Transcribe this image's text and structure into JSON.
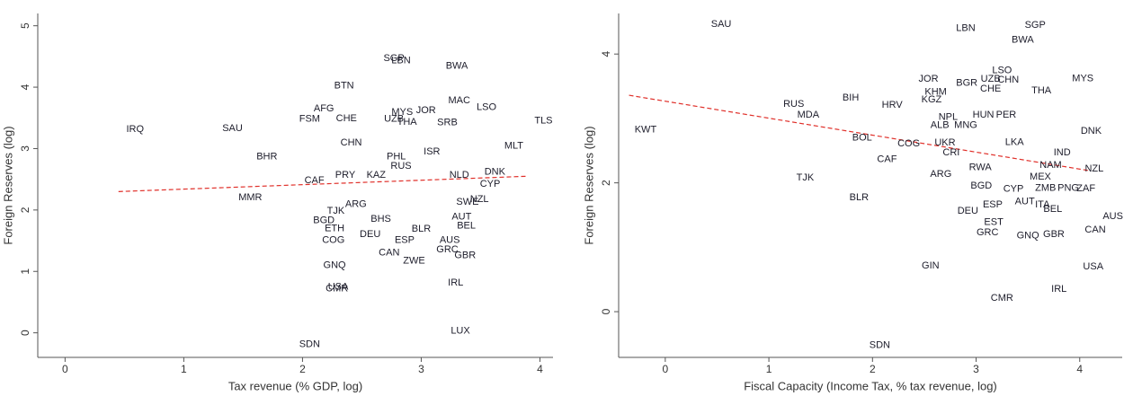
{
  "chart_data": [
    {
      "type": "scatter",
      "xlabel": "Tax revenue (% GDP, log)",
      "ylabel": "Foreign Reserves (log)",
      "xlim": [
        -0.23,
        4.11
      ],
      "ylim": [
        -0.4,
        5.2
      ],
      "xticks": [
        0,
        1,
        2,
        3,
        4
      ],
      "yticks": [
        0,
        1,
        2,
        3,
        4,
        5
      ],
      "color": "#1c1c2a",
      "labels": [
        "IRQ",
        "SAU",
        "BHR",
        "MMR",
        "AFG",
        "FSM",
        "CHE",
        "BTN",
        "SGP",
        "LBN",
        "BWA",
        "MAC",
        "LSO",
        "TLS",
        "MLT",
        "MYS",
        "JOR",
        "UZB",
        "THA",
        "SRB",
        "CHN",
        "CAF",
        "PRY",
        "DNK",
        "CYP",
        "NZL",
        "SWE",
        "AUT",
        "BEL",
        "AUS",
        "GRC",
        "GBR",
        "ZWE",
        "CAN",
        "ESP",
        "DEU",
        "BLR",
        "BHS",
        "COG",
        "ETH",
        "BGD",
        "TJK",
        "GNQ",
        "CMR",
        "USA",
        "IRL",
        "LUX",
        "SDN",
        "ARG",
        "KAZ",
        "PHL",
        "ISR",
        "NLD",
        "RUS"
      ],
      "x": [
        0.59,
        1.41,
        1.7,
        1.56,
        2.18,
        2.06,
        2.37,
        2.35,
        2.77,
        2.83,
        3.3,
        3.32,
        3.55,
        4.03,
        3.78,
        2.84,
        3.04,
        2.77,
        2.88,
        3.22,
        2.41,
        2.1,
        2.36,
        3.62,
        3.58,
        3.49,
        3.39,
        3.34,
        3.38,
        3.24,
        3.22,
        3.37,
        2.94,
        2.73,
        2.86,
        2.57,
        3.0,
        2.66,
        2.26,
        2.27,
        2.18,
        2.28,
        2.27,
        2.29,
        2.3,
        3.29,
        3.33,
        2.06,
        2.45,
        2.62,
        2.79,
        3.09,
        3.32,
        2.83
      ],
      "y": [
        3.31,
        3.33,
        2.87,
        2.2,
        3.65,
        3.48,
        3.49,
        4.02,
        4.47,
        4.43,
        4.34,
        3.78,
        3.67,
        3.45,
        3.04,
        3.59,
        3.62,
        3.48,
        3.43,
        3.42,
        3.09,
        2.48,
        2.57,
        2.62,
        2.42,
        2.17,
        2.13,
        1.89,
        1.74,
        1.51,
        1.35,
        1.26,
        1.17,
        1.3,
        1.51,
        1.6,
        1.69,
        1.85,
        1.51,
        1.7,
        1.83,
        1.98,
        1.1,
        0.72,
        0.75,
        0.81,
        0.03,
        -0.19,
        2.09,
        2.57,
        2.87,
        2.95,
        2.57,
        2.71
      ],
      "fit_line": {
        "x": [
          0.45,
          3.9
        ],
        "y": [
          2.3,
          2.55
        ],
        "color": "#e0302a"
      }
    },
    {
      "type": "scatter",
      "xlabel": "Fiscal Capacity (Income Tax, % tax revenue, log)",
      "ylabel": "Foreign Reserves (log)",
      "xlim": [
        -0.45,
        4.41
      ],
      "ylim": [
        -0.71,
        4.63
      ],
      "xticks": [
        0,
        1,
        2,
        3,
        4
      ],
      "yticks": [
        0,
        2,
        4
      ],
      "color": "#1c1c2a",
      "labels": [
        "SAU",
        "KWT",
        "RUS",
        "MDA",
        "BIH",
        "HRV",
        "BOL",
        "CAF",
        "COG",
        "TJK",
        "BLR",
        "GIN",
        "SDN",
        "CMR",
        "IRL",
        "USA",
        "CAN",
        "AUS",
        "LBN",
        "SGP",
        "BWA",
        "JOR",
        "BGR",
        "UZB",
        "LSO",
        "CHN",
        "CHE",
        "THA",
        "MYS",
        "KHM",
        "KGZ",
        "NPL",
        "HUN",
        "PER",
        "DNK",
        "NAM",
        "NZL",
        "MEX",
        "ZAF",
        "PNG",
        "ZMB",
        "CYP",
        "BGD",
        "ARG",
        "RWA",
        "AUT",
        "ITA",
        "BEL",
        "GBR",
        "GNQ",
        "GRC",
        "EST",
        "DEU",
        "ESP",
        "IND",
        "LKA",
        "ALB",
        "UKR",
        "CRI",
        "MNG"
      ],
      "x": [
        0.54,
        -0.19,
        1.24,
        1.38,
        1.79,
        2.19,
        1.9,
        2.14,
        2.35,
        1.35,
        1.87,
        2.56,
        2.07,
        3.25,
        3.8,
        4.13,
        4.15,
        4.32,
        2.9,
        3.57,
        3.45,
        2.54,
        2.91,
        3.14,
        3.25,
        3.31,
        3.14,
        3.63,
        4.03,
        2.61,
        2.57,
        2.73,
        3.07,
        3.29,
        4.11,
        3.72,
        4.14,
        3.62,
        4.06,
        3.89,
        3.67,
        3.36,
        3.05,
        2.66,
        3.04,
        3.47,
        3.64,
        3.74,
        3.75,
        3.5,
        3.11,
        3.17,
        2.92,
        3.16,
        3.83,
        3.37,
        2.65,
        2.7,
        2.76,
        2.9
      ],
      "y": [
        4.46,
        2.82,
        3.22,
        3.05,
        3.32,
        3.21,
        2.7,
        2.36,
        2.61,
        2.08,
        1.77,
        0.71,
        -0.52,
        0.21,
        0.35,
        0.7,
        1.27,
        1.48,
        4.4,
        4.45,
        4.22,
        3.61,
        3.55,
        3.61,
        3.74,
        3.6,
        3.46,
        3.43,
        3.62,
        3.41,
        3.29,
        3.02,
        3.05,
        3.05,
        2.8,
        2.27,
        2.22,
        2.09,
        1.91,
        1.92,
        1.92,
        1.9,
        1.95,
        2.13,
        2.24,
        1.71,
        1.66,
        1.59,
        1.2,
        1.18,
        1.23,
        1.39,
        1.56,
        1.66,
        2.47,
        2.63,
        2.89,
        2.62,
        2.47,
        2.89
      ],
      "fit_line": {
        "x": [
          -0.35,
          4.09
        ],
        "y": [
          3.36,
          2.19
        ],
        "color": "#e0302a"
      }
    }
  ]
}
